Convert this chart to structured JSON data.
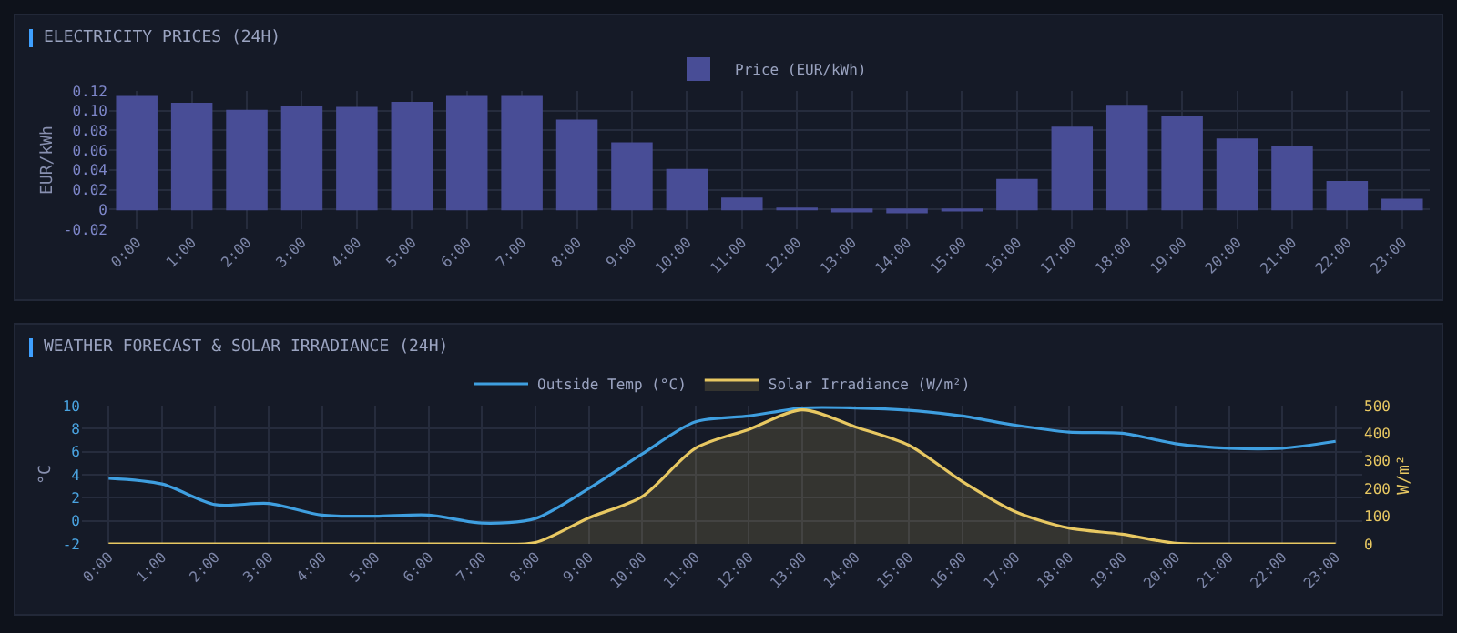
{
  "chart_data": [
    {
      "type": "bar",
      "title": "ELECTRICITY PRICES (24H)",
      "ylabel": "EUR/kWh",
      "categories": [
        "0:00",
        "1:00",
        "2:00",
        "3:00",
        "4:00",
        "5:00",
        "6:00",
        "7:00",
        "8:00",
        "9:00",
        "10:00",
        "11:00",
        "12:00",
        "13:00",
        "14:00",
        "15:00",
        "16:00",
        "17:00",
        "18:00",
        "19:00",
        "20:00",
        "21:00",
        "22:00",
        "23:00"
      ],
      "series": [
        {
          "name": "Price (EUR/kWh)",
          "color": "#484d96",
          "values": [
            0.114,
            0.107,
            0.1,
            0.104,
            0.103,
            0.108,
            0.114,
            0.114,
            0.09,
            0.067,
            0.04,
            0.011,
            0.001,
            -0.002,
            -0.003,
            -0.001,
            0.03,
            0.083,
            0.105,
            0.094,
            0.071,
            0.063,
            0.028,
            0.01
          ]
        }
      ],
      "ylim": [
        -0.02,
        0.12
      ],
      "yticks": [
        -0.02,
        {
          "value": 0,
          "label": "0"
        },
        0.02,
        0.04,
        0.06,
        0.08,
        {
          "value": 0.1,
          "label": "0.10"
        },
        0.12
      ],
      "grid": true,
      "legend": "top"
    },
    {
      "type": "line",
      "title": "WEATHER FORECAST & SOLAR IRRADIANCE (24H)",
      "ylabel": "°C",
      "y2label": "W/m²",
      "categories": [
        "0:00",
        "1:00",
        "2:00",
        "3:00",
        "4:00",
        "5:00",
        "6:00",
        "7:00",
        "8:00",
        "9:00",
        "10:00",
        "11:00",
        "12:00",
        "13:00",
        "14:00",
        "15:00",
        "16:00",
        "17:00",
        "18:00",
        "19:00",
        "20:00",
        "21:00",
        "22:00",
        "23:00"
      ],
      "series": [
        {
          "name": "Outside Temp (°C)",
          "color": "#3f9fe0",
          "values": [
            3.7,
            3.2,
            1.4,
            1.5,
            0.5,
            0.4,
            0.5,
            -0.2,
            0.2,
            2.8,
            5.8,
            8.6,
            9.1,
            9.8,
            9.8,
            9.6,
            9.1,
            8.3,
            7.7,
            7.6,
            6.7,
            6.3,
            6.3,
            6.9
          ]
        },
        {
          "name": "Solar Irradiance (W/m²)",
          "type": "area",
          "axis": "y2",
          "color": "#e8c862",
          "values": [
            0,
            0,
            0,
            0,
            0,
            0,
            0,
            0,
            5,
            94,
            171,
            346,
            414,
            485,
            423,
            357,
            226,
            116,
            57,
            35,
            2,
            0,
            0,
            0
          ]
        }
      ],
      "ylim": [
        -2,
        10
      ],
      "yticks": [
        -2,
        0,
        2,
        4,
        6,
        8,
        10
      ],
      "y2lim": [
        0,
        500
      ],
      "y2ticks": [
        0,
        100,
        200,
        300,
        400,
        500
      ],
      "grid": true,
      "legend": "top"
    }
  ]
}
